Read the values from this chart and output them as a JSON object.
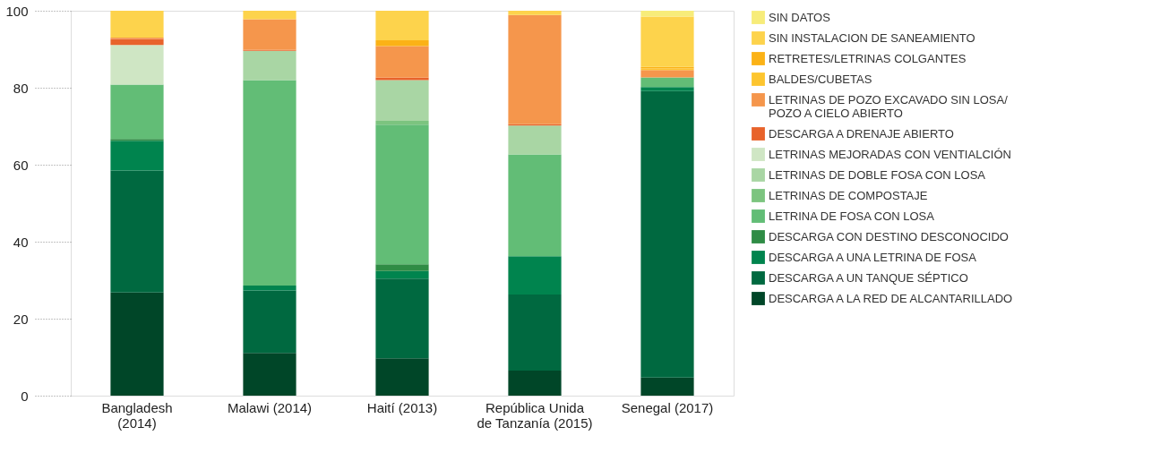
{
  "chart_data": {
    "type": "bar",
    "stacked": true,
    "categories": [
      "Bangladesh\n(2014)",
      "Malawi (2014)",
      "Haití (2013)",
      "República Unida\nde Tanzanía (2015)",
      "Senegal (2017)"
    ],
    "series": [
      {
        "name": "DESCARGA A LA RED DE ALCANTARILLADO",
        "color": "#004628",
        "values": [
          26.8,
          11.1,
          9.7,
          6.5,
          4.7
        ]
      },
      {
        "name": "DESCARGA A UN TANQUE SÉPTICO",
        "color": "#006940",
        "values": [
          31.7,
          16.2,
          20.7,
          19.8,
          74.4
        ]
      },
      {
        "name": "DESCARGA A UNA LETRINA DE FOSA",
        "color": "#00844e",
        "values": [
          7.7,
          1.3,
          2.0,
          9.9,
          1.1
        ]
      },
      {
        "name": "DESCARGA CON DESTINO DESCONOCIDO",
        "color": "#2f8c45",
        "values": [
          0.5,
          null,
          1.7,
          null,
          null
        ]
      },
      {
        "name": "LETRINA DE FOSA CON LOSA",
        "color": "#62bd76",
        "values": [
          14.1,
          53.4,
          36.3,
          26.5,
          2.5
        ]
      },
      {
        "name": "LETRINAS DE COMPOSTAJE",
        "color": "#7cc47f",
        "values": [
          null,
          null,
          1.0,
          null,
          null
        ]
      },
      {
        "name": "LETRINAS DE DOBLE FOSA CON LOSA",
        "color": "#a9d6a4",
        "values": [
          null,
          7.6,
          10.6,
          7.5,
          null
        ]
      },
      {
        "name": "LETRINAS MEJORADAS CON VENTIALCIÓN",
        "color": "#cfe6c4",
        "values": [
          10.3,
          null,
          null,
          null,
          null
        ]
      },
      {
        "name": "DESCARGA A DRENAJE ABIERTO",
        "color": "#e8632b",
        "values": [
          1.6,
          0.2,
          0.6,
          0.3,
          null
        ]
      },
      {
        "name": "LETRINAS DE POZO EXCAVADO SIN LOSA/\nPOZO A CIELO ABIERTO",
        "color": "#f5964c",
        "values": [
          0.3,
          8.0,
          8.2,
          28.4,
          1.9
        ]
      },
      {
        "name": "BALDES/CUBETAS",
        "color": "#fdc52f",
        "values": [
          null,
          null,
          null,
          null,
          0.4
        ]
      },
      {
        "name": "RETRETES/LETRINAS COLGANTES",
        "color": "#fbb216",
        "values": [
          null,
          null,
          1.5,
          null,
          0.4
        ]
      },
      {
        "name": "SIN INSTALACION DE SANEAMIENTO",
        "color": "#fdd34c",
        "values": [
          7.0,
          2.2,
          7.7,
          1.1,
          13.1
        ]
      },
      {
        "name": "SIN DATOS",
        "color": "#f7ec7a",
        "values": [
          null,
          null,
          null,
          null,
          1.5
        ]
      }
    ],
    "ylim": [
      0,
      100
    ],
    "yticks": [
      0,
      20,
      40,
      60,
      80,
      100
    ],
    "grid": false,
    "legend": "right"
  }
}
